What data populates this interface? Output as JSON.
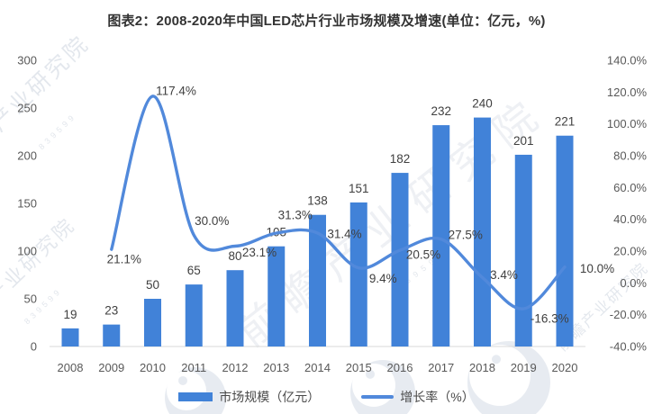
{
  "title": "图表2：2008-2020年中国LED芯片行业市场规模及增速(单位：亿元，%)",
  "watermark": {
    "text": "前瞻产业研究院",
    "code": "839599"
  },
  "legend": {
    "items": [
      {
        "label": "市场规模（亿元）",
        "swatch": "bar"
      },
      {
        "label": "增长率（%）",
        "swatch": "line"
      }
    ]
  },
  "colors": {
    "bar": "#4182D8",
    "line": "#5189DB",
    "title_text": "#333333",
    "label_text": "#404040",
    "axis_text": "#595959",
    "axis_line": "#D9D9D9",
    "watermark": "#C9D1DC"
  },
  "chart_data": {
    "type": "bar",
    "subtype": "bar+line-combo",
    "title": "图表2：2008-2020年中国LED芯片行业市场规模及增速(单位：亿元，%)",
    "categories": [
      "2008",
      "2009",
      "2010",
      "2011",
      "2012",
      "2013",
      "2014",
      "2015",
      "2016",
      "2017",
      "2018",
      "2019",
      "2020"
    ],
    "series": [
      {
        "name": "市场规模（亿元）",
        "type": "bar",
        "axis": "left",
        "values": [
          19,
          23,
          50,
          65,
          80,
          105,
          138,
          151,
          182,
          232,
          240,
          201,
          221
        ]
      },
      {
        "name": "增长率（%）",
        "type": "line",
        "axis": "right",
        "values": [
          null,
          21.1,
          117.4,
          30.0,
          23.1,
          31.3,
          31.4,
          9.4,
          20.5,
          27.5,
          3.4,
          -16.3,
          10.0
        ]
      }
    ],
    "left_axis": {
      "min": 0,
      "max": 300,
      "step": 50,
      "ticks": [
        0,
        50,
        100,
        150,
        200,
        250,
        300
      ]
    },
    "right_axis": {
      "min": -40,
      "max": 140,
      "step": 20,
      "format": "percent_1dp",
      "ticks": [
        "-40.0%",
        "-20.0%",
        "0.0%",
        "20.0%",
        "40.0%",
        "60.0%",
        "80.0%",
        "100.0%",
        "120.0%",
        "140.0%"
      ]
    },
    "grid": false,
    "legend_position": "bottom",
    "data_labels": true,
    "line_label_offsets": [
      null,
      [
        14,
        11
      ],
      [
        26,
        -6
      ],
      [
        20,
        -16
      ],
      [
        27,
        7
      ],
      [
        21,
        -20
      ],
      [
        30,
        1
      ],
      [
        27,
        12
      ],
      [
        26,
        5
      ],
      [
        27,
        -5
      ],
      [
        24,
        -3
      ],
      [
        29,
        11
      ],
      [
        36,
        2
      ]
    ]
  }
}
